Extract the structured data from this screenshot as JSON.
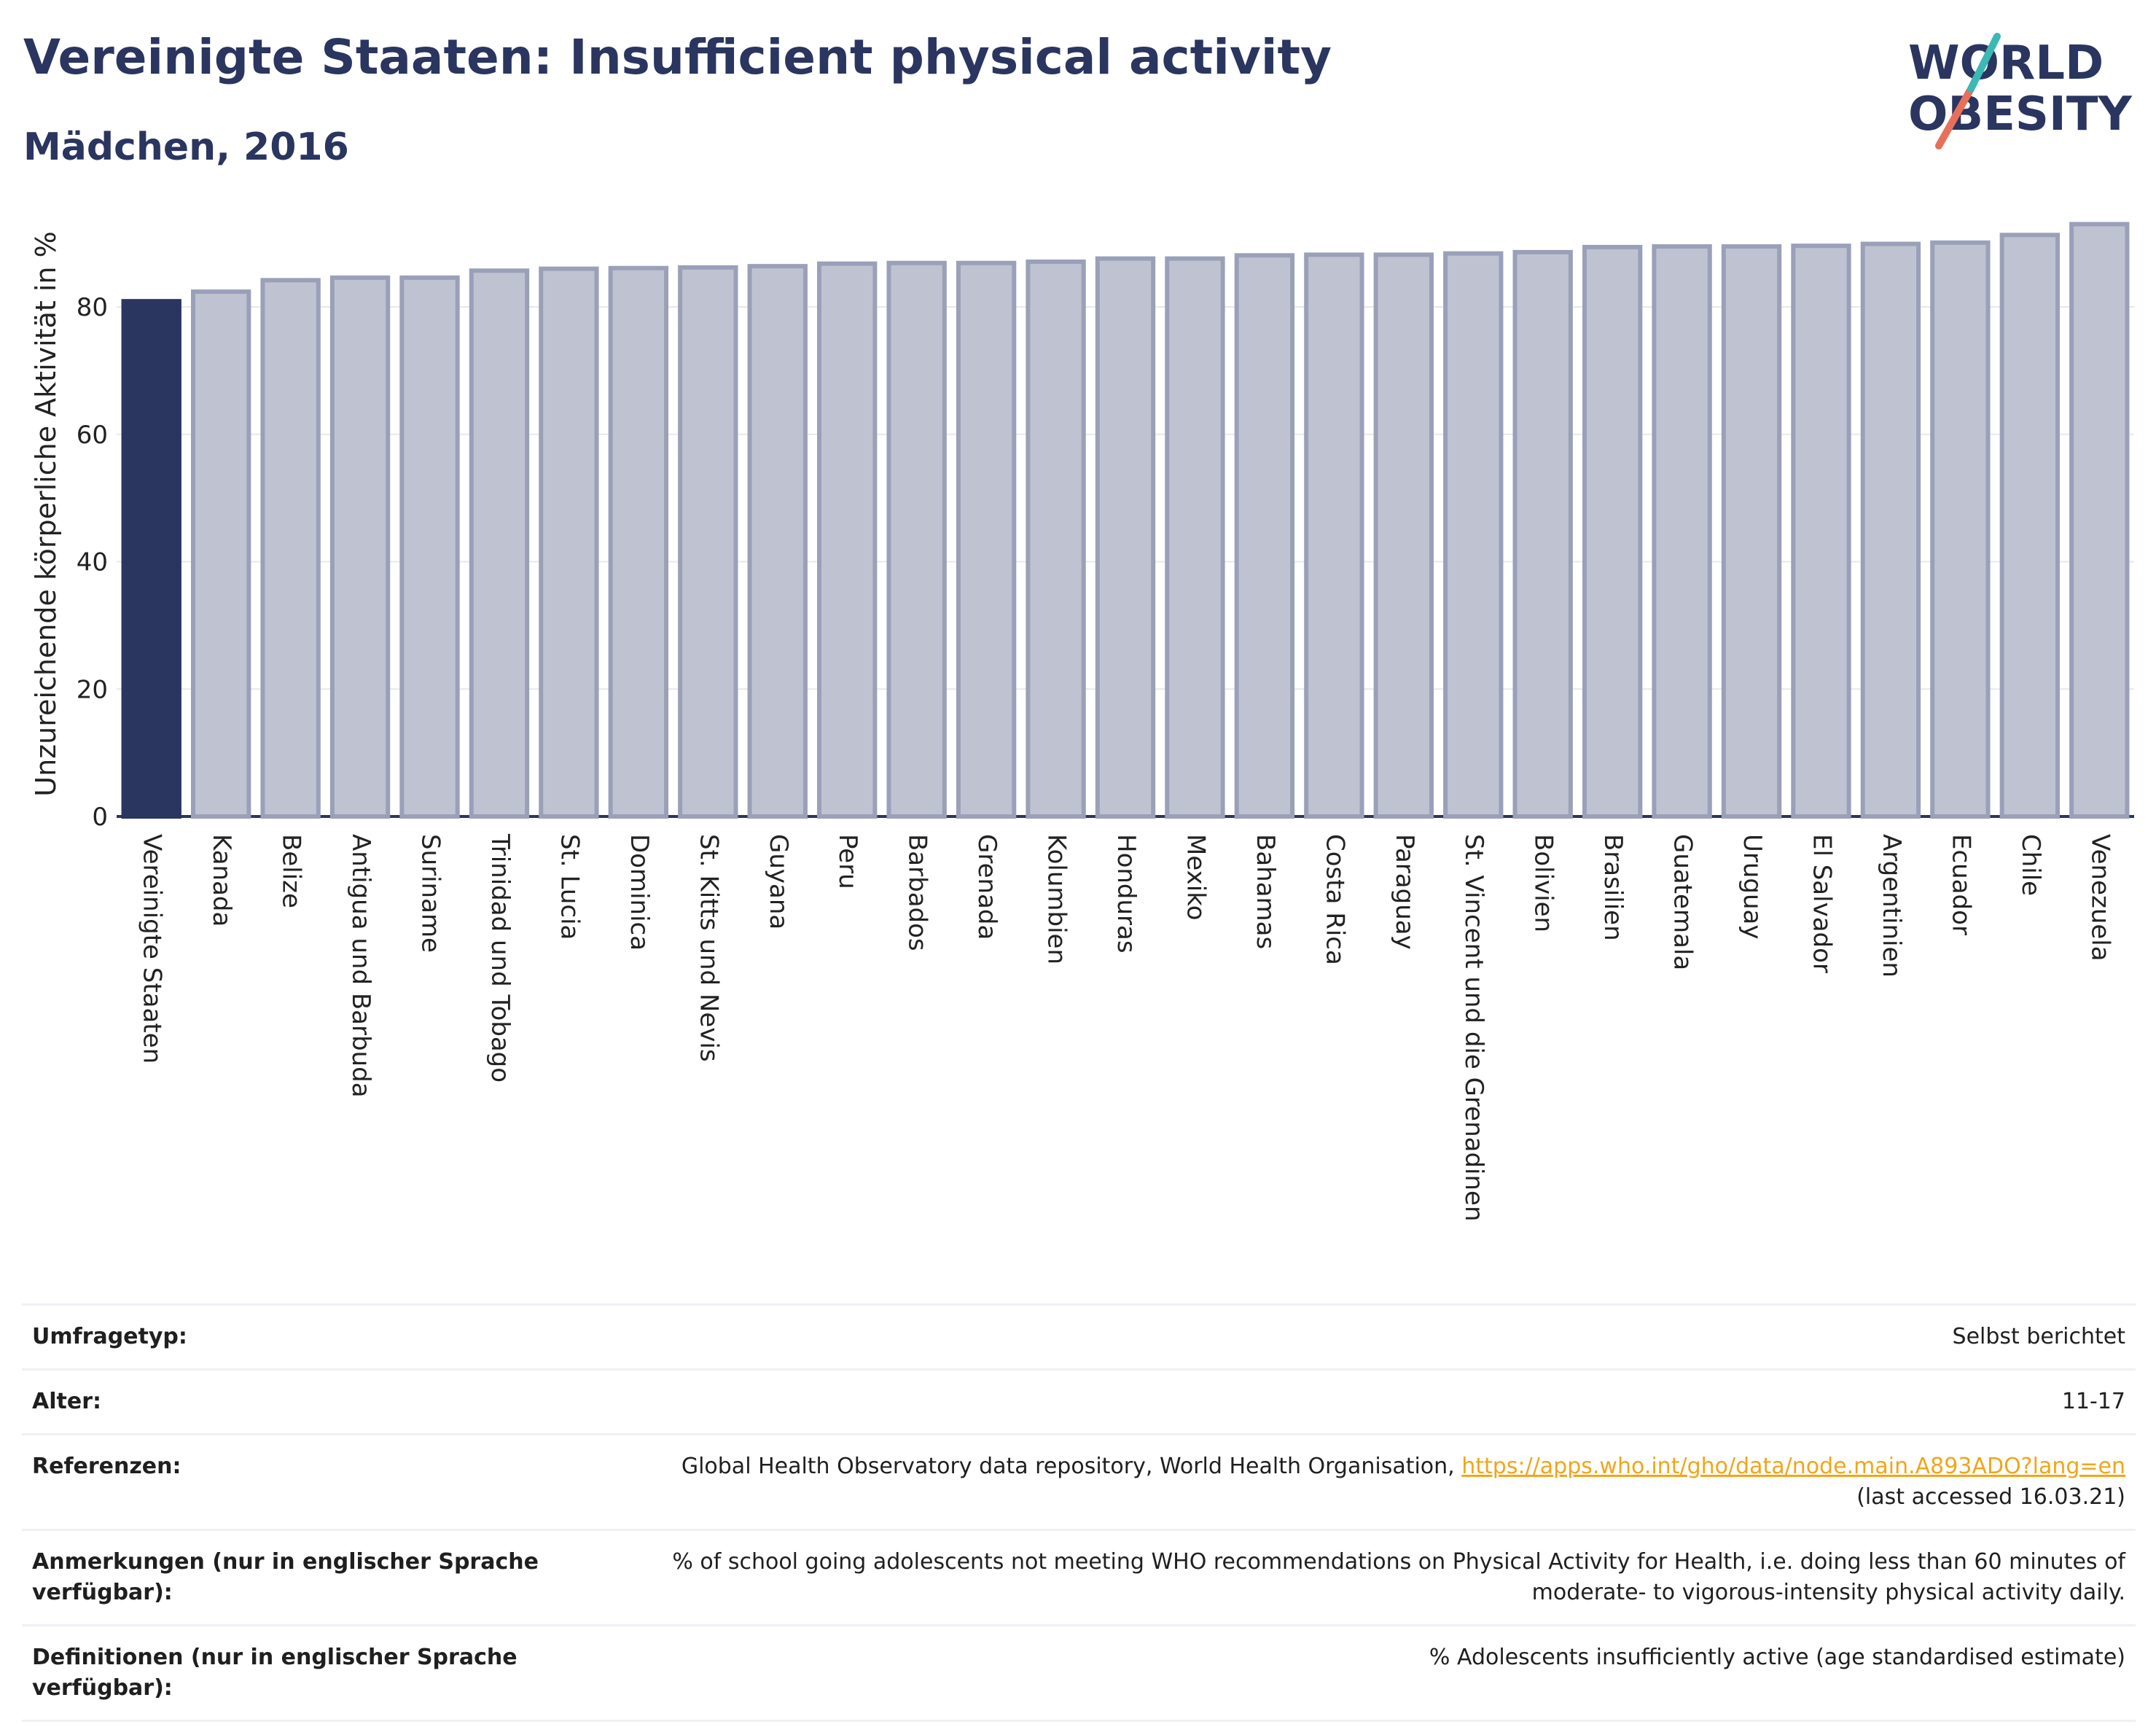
{
  "title": "Vereinigte Staaten: Insufficient physical activity",
  "subtitle": "Mädchen, 2016",
  "logo": {
    "line1": "WORLD",
    "line2": "OBESITY"
  },
  "colors": {
    "highlight": "#2a3560",
    "bar": "#bfc3d1",
    "bar_border": "#9aa0b8",
    "accent_teal": "#3cb8b5",
    "accent_red": "#e8705a",
    "link": "#f2a51a"
  },
  "chart_data": {
    "type": "bar",
    "ylabel": "Unzureichende körperliche Aktivität in %",
    "ylim": [
      0,
      95
    ],
    "yticks": [
      0,
      20,
      40,
      60,
      80
    ],
    "grid": true,
    "highlight_index": 0,
    "categories": [
      "Vereinigte Staaten",
      "Kanada",
      "Belize",
      "Antigua und Barbuda",
      "Suriname",
      "Trinidad und Tobago",
      "St. Lucia",
      "Dominica",
      "St. Kitts und Nevis",
      "Guyana",
      "Peru",
      "Barbados",
      "Grenada",
      "Kolumbien",
      "Honduras",
      "Mexiko",
      "Bahamas",
      "Costa Rica",
      "Paraguay",
      "St. Vincent und die Grenadinen",
      "Bolivien",
      "Brasilien",
      "Guatemala",
      "Uruguay",
      "El Salvador",
      "Argentinien",
      "Ecuador",
      "Chile",
      "Venezuela"
    ],
    "values": [
      80.9,
      82.4,
      84.2,
      84.6,
      84.6,
      85.7,
      86.0,
      86.1,
      86.2,
      86.4,
      86.8,
      86.9,
      86.9,
      87.1,
      87.6,
      87.6,
      88.1,
      88.2,
      88.2,
      88.4,
      88.6,
      89.4,
      89.5,
      89.5,
      89.6,
      89.9,
      90.1,
      91.3,
      93.0
    ]
  },
  "table": {
    "survey_label": "Umfragetyp:",
    "survey_value": "Selbst berichtet",
    "age_label": "Alter:",
    "age_value": "11-17",
    "ref_label": "Referenzen:",
    "ref_text": "Global Health Observatory data repository, World Health Organisation,",
    "ref_link": "https://apps.who.int/gho/data/node.main.A893ADO?lang=en",
    "ref_access": "(last accessed 16.03.21)",
    "notes_label": "Anmerkungen (nur in englischer Sprache verfügbar):",
    "notes_value": "% of school going adolescents not meeting WHO recommendations on Physical Activity for Health, i.e. doing less than 60 minutes of moderate- to vigorous-intensity physical activity daily.",
    "def_label": "Definitionen (nur in englischer Sprache verfügbar):",
    "def_value": "% Adolescents insufficiently active (age standardised estimate)"
  }
}
